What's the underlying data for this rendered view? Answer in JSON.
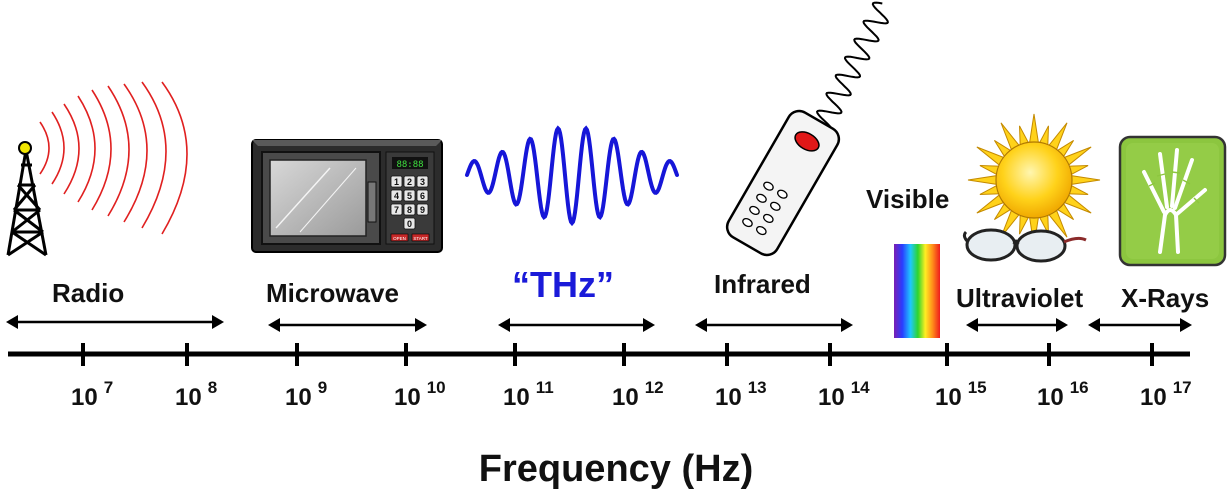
{
  "bands": {
    "radio": "Radio",
    "microwave": "Microwave",
    "thz": "“THz”",
    "infrared": "Infrared",
    "visible": "Visible",
    "ultraviolet": "Ultraviolet",
    "xrays": "X-Rays"
  },
  "axis": {
    "title": "Frequency (Hz)",
    "tick_base": "10",
    "tick_exponents": [
      "7",
      "8",
      "9",
      "10",
      "11",
      "12",
      "13",
      "14",
      "15",
      "16",
      "17"
    ]
  },
  "microwave_keypad": [
    "1",
    "2",
    "3",
    "4",
    "5",
    "6",
    "7",
    "8",
    "9",
    "0"
  ],
  "microwave_buttons": [
    "OPEN",
    "START"
  ],
  "colors": {
    "axis": "#000000",
    "thz_label": "#1a1ad9",
    "thz_wave": "#1616d8",
    "radio_waves": "#e02020",
    "sun": "#ffd21a",
    "xray_panel": "#8cc63f"
  },
  "icons": [
    "radio-tower-icon",
    "microwave-oven-icon",
    "thz-wave-icon",
    "remote-control-icon",
    "visible-spectrum-icon",
    "sun-icon",
    "sunglasses-icon",
    "xray-hand-icon"
  ]
}
